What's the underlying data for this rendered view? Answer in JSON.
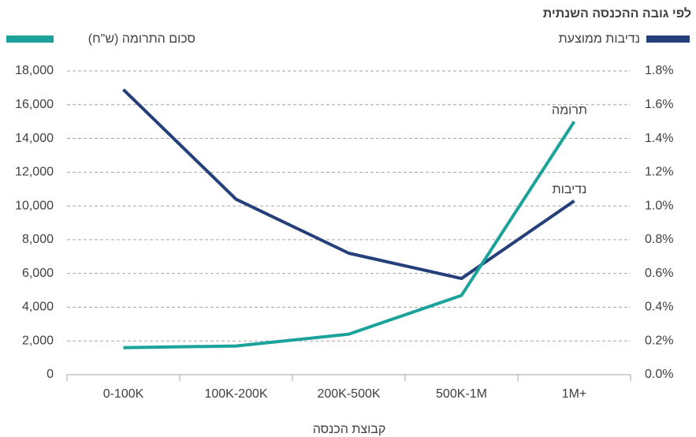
{
  "chart_data": {
    "type": "line",
    "title": "לפי גובה ההכנסה השנתית",
    "x_label": "קבוצת הכנסה",
    "categories": [
      "0-100K",
      "100K-200K",
      "200K-500K",
      "500K-1M",
      "1M+"
    ],
    "series": [
      {
        "name": "נדיבות ממוצעת",
        "color": "#243f7a",
        "axis": "y2",
        "values": [
          1.69,
          1.04,
          0.72,
          0.57,
          1.03
        ]
      },
      {
        "name": "סכום התרומה (ש\"ח)",
        "color": "#1ba39b",
        "values": [
          1600,
          1700,
          2400,
          4700,
          15000
        ]
      }
    ],
    "annotations": [
      "נדיבות",
      "תרומה"
    ],
    "ylim": [
      0,
      18000
    ],
    "yticks": [
      0,
      {
        "value": 2000,
        "label": "2,000"
      },
      {
        "value": 4000,
        "label": "4,000"
      },
      {
        "value": 6000,
        "label": "6,000"
      },
      {
        "value": 8000,
        "label": "8,000"
      },
      {
        "value": 10000,
        "label": "10,000"
      },
      {
        "value": 12000,
        "label": "12,000"
      },
      {
        "value": 14000,
        "label": "14,000"
      },
      {
        "value": 16000,
        "label": "16,000"
      },
      {
        "value": 18000,
        "label": "18,000"
      }
    ],
    "y2lim": [
      0,
      1.8
    ],
    "y2ticks": [
      {
        "value": 0,
        "label": "0.0%"
      },
      {
        "value": 0.2,
        "label": "0.2%"
      },
      {
        "value": 0.4,
        "label": "0.4%"
      },
      {
        "value": 0.6,
        "label": "0.6%"
      },
      {
        "value": 0.8,
        "label": "0.8%"
      },
      {
        "value": 1.0,
        "label": "1.0%"
      },
      {
        "value": 1.2,
        "label": "1.2%"
      },
      {
        "value": 1.4,
        "label": "1.4%"
      },
      {
        "value": 1.6,
        "label": "1.6%"
      },
      {
        "value": 1.8,
        "label": "1.8%"
      }
    ],
    "grid": true
  }
}
